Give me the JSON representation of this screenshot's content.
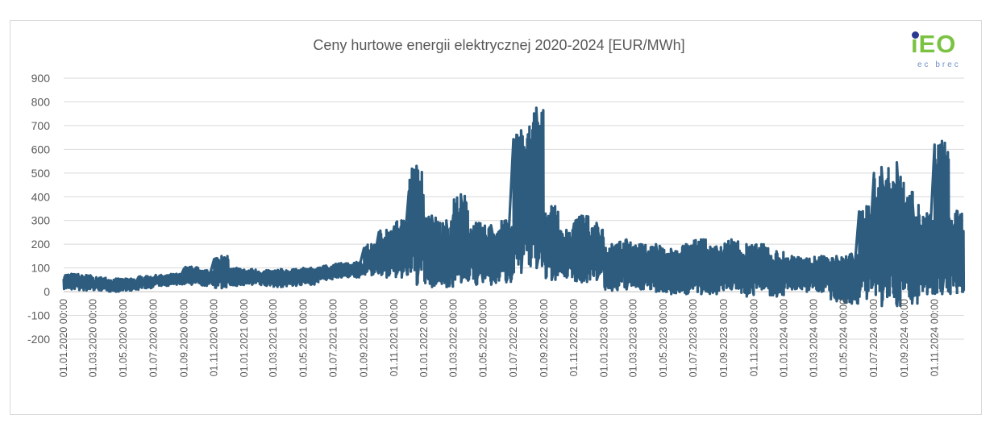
{
  "logo": {
    "text": "iEO",
    "subtext": "ec brec"
  },
  "chart_data": {
    "type": "line",
    "title": "Ceny hurtowe energii elektrycznej 2020-2024 [EUR/MWh]",
    "xlabel": "",
    "ylabel": "",
    "ylim": [
      -200,
      900
    ],
    "yticks": [
      "900",
      "800",
      "700",
      "600",
      "500",
      "400",
      "300",
      "200",
      "100",
      "0",
      "-100",
      "-200"
    ],
    "ytick_values": [
      900,
      800,
      700,
      600,
      500,
      400,
      300,
      200,
      100,
      0,
      -100,
      -200
    ],
    "x_start": "2020-01-01",
    "x_end": "2024-12-31",
    "xticks": [
      "01.01.2020 00:00",
      "01.03.2020 00:00",
      "01.05.2020 00:00",
      "01.07.2020 00:00",
      "01.09.2020 00:00",
      "01.11.2020 00:00",
      "01.01.2021 00:00",
      "01.03.2021 00:00",
      "01.05.2021 00:00",
      "01.07.2021 00:00",
      "01.09.2021 00:00",
      "01.11.2021 00:00",
      "01.01.2022 00:00",
      "01.03.2022 00:00",
      "01.05.2022 00:00",
      "01.07.2022 00:00",
      "01.09.2022 00:00",
      "01.11.2022 00:00",
      "01.01.2023 00:00",
      "01.03.2023 00:00",
      "01.05.2023 00:00",
      "01.07.2023 00:00",
      "01.09.2023 00:00",
      "01.11.2023 00:00",
      "01.01.2024 00:00",
      "01.03.2024 00:00",
      "01.05.2024 00:00",
      "01.07.2024 00:00",
      "01.09.2024 00:00",
      "01.11.2024 00:00"
    ],
    "grid": true,
    "series": [
      {
        "color": "#2e5c7e",
        "note_range_envelope": "Hourly price range per period",
        "points": [
          {
            "x": "2020-01-01",
            "low": 10,
            "high": 75
          },
          {
            "x": "2020-02-01",
            "low": 5,
            "high": 70
          },
          {
            "x": "2020-03-01",
            "low": 5,
            "high": 60
          },
          {
            "x": "2020-04-01",
            "low": 0,
            "high": 55
          },
          {
            "x": "2020-05-01",
            "low": 5,
            "high": 55
          },
          {
            "x": "2020-06-01",
            "low": 15,
            "high": 65
          },
          {
            "x": "2020-07-01",
            "low": 25,
            "high": 70
          },
          {
            "x": "2020-08-01",
            "low": 30,
            "high": 75
          },
          {
            "x": "2020-09-01",
            "low": 30,
            "high": 105
          },
          {
            "x": "2020-10-01",
            "low": 25,
            "high": 90
          },
          {
            "x": "2020-11-01",
            "low": 15,
            "high": 150
          },
          {
            "x": "2020-12-01",
            "low": 25,
            "high": 100
          },
          {
            "x": "2021-01-01",
            "low": 30,
            "high": 95
          },
          {
            "x": "2021-02-01",
            "low": 25,
            "high": 90
          },
          {
            "x": "2021-03-01",
            "low": 20,
            "high": 95
          },
          {
            "x": "2021-04-01",
            "low": 25,
            "high": 95
          },
          {
            "x": "2021-05-01",
            "low": 30,
            "high": 100
          },
          {
            "x": "2021-06-01",
            "low": 50,
            "high": 110
          },
          {
            "x": "2021-07-01",
            "low": 60,
            "high": 120
          },
          {
            "x": "2021-08-01",
            "low": 60,
            "high": 125
          },
          {
            "x": "2021-09-01",
            "low": 70,
            "high": 200
          },
          {
            "x": "2021-10-01",
            "low": 60,
            "high": 260
          },
          {
            "x": "2021-11-01",
            "low": 60,
            "high": 300
          },
          {
            "x": "2021-12-01",
            "low": 30,
            "high": 530
          },
          {
            "x": "2022-01-01",
            "low": 20,
            "high": 320
          },
          {
            "x": "2022-02-01",
            "low": 20,
            "high": 300
          },
          {
            "x": "2022-03-01",
            "low": 40,
            "high": 410
          },
          {
            "x": "2022-04-01",
            "low": 30,
            "high": 290
          },
          {
            "x": "2022-05-01",
            "low": 30,
            "high": 280
          },
          {
            "x": "2022-06-01",
            "low": 40,
            "high": 300
          },
          {
            "x": "2022-07-01",
            "low": 80,
            "high": 680
          },
          {
            "x": "2022-08-01",
            "low": 100,
            "high": 775
          },
          {
            "x": "2022-09-01",
            "low": 50,
            "high": 360
          },
          {
            "x": "2022-10-01",
            "low": 60,
            "high": 260
          },
          {
            "x": "2022-11-01",
            "low": 40,
            "high": 320
          },
          {
            "x": "2022-12-01",
            "low": 50,
            "high": 290
          },
          {
            "x": "2023-01-01",
            "low": 5,
            "high": 200
          },
          {
            "x": "2023-02-01",
            "low": 10,
            "high": 220
          },
          {
            "x": "2023-03-01",
            "low": 10,
            "high": 200
          },
          {
            "x": "2023-04-01",
            "low": 0,
            "high": 200
          },
          {
            "x": "2023-05-01",
            "low": -10,
            "high": 180
          },
          {
            "x": "2023-06-01",
            "low": -10,
            "high": 200
          },
          {
            "x": "2023-07-01",
            "low": -10,
            "high": 220
          },
          {
            "x": "2023-08-01",
            "low": -10,
            "high": 190
          },
          {
            "x": "2023-09-01",
            "low": 10,
            "high": 220
          },
          {
            "x": "2023-10-01",
            "low": -20,
            "high": 200
          },
          {
            "x": "2023-11-01",
            "low": 10,
            "high": 200
          },
          {
            "x": "2023-12-01",
            "low": -20,
            "high": 170
          },
          {
            "x": "2024-01-01",
            "low": 10,
            "high": 150
          },
          {
            "x": "2024-02-01",
            "low": 0,
            "high": 140
          },
          {
            "x": "2024-03-01",
            "low": 0,
            "high": 150
          },
          {
            "x": "2024-04-01",
            "low": -40,
            "high": 150
          },
          {
            "x": "2024-05-01",
            "low": -50,
            "high": 160
          },
          {
            "x": "2024-06-01",
            "low": -30,
            "high": 360
          },
          {
            "x": "2024-07-01",
            "low": -60,
            "high": 525
          },
          {
            "x": "2024-08-01",
            "low": -60,
            "high": 545
          },
          {
            "x": "2024-09-01",
            "low": -50,
            "high": 420
          },
          {
            "x": "2024-10-01",
            "low": -10,
            "high": 330
          },
          {
            "x": "2024-11-01",
            "low": -10,
            "high": 635
          },
          {
            "x": "2024-12-01",
            "low": -10,
            "high": 340
          }
        ]
      }
    ]
  }
}
